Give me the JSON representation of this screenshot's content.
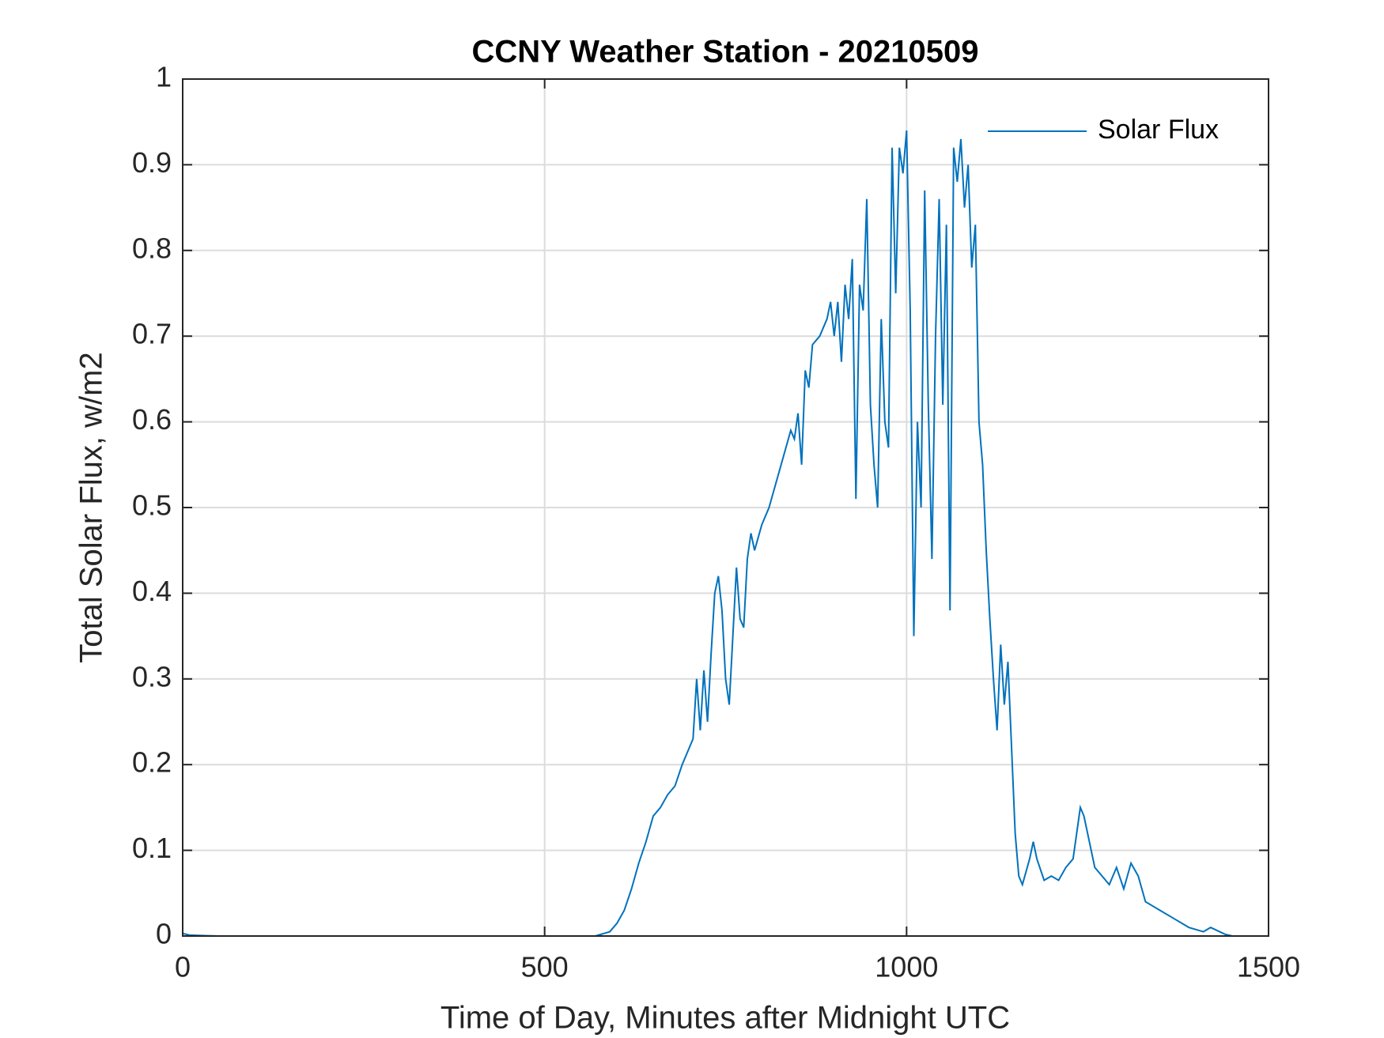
{
  "chart_data": {
    "type": "line",
    "title": "CCNY Weather Station - 20210509",
    "xlabel": "Time of Day, Minutes after Midnight UTC",
    "ylabel": "Total Solar Flux, w/m2",
    "xlim": [
      0,
      1500
    ],
    "xticks": [
      0,
      500,
      1000,
      1500
    ],
    "ylim": [
      0,
      1
    ],
    "yticks": [
      0,
      0.1,
      0.2,
      0.3,
      0.4,
      0.5,
      0.6,
      0.7,
      0.8,
      0.9,
      1
    ],
    "grid": true,
    "legend": "northeast",
    "x": [
      0,
      10,
      50,
      200,
      400,
      500,
      570,
      590,
      600,
      610,
      620,
      630,
      640,
      650,
      660,
      670,
      680,
      690,
      700,
      705,
      710,
      715,
      720,
      725,
      730,
      735,
      740,
      745,
      750,
      755,
      760,
      765,
      770,
      775,
      780,
      785,
      790,
      800,
      810,
      820,
      830,
      840,
      845,
      850,
      855,
      860,
      865,
      870,
      880,
      890,
      895,
      900,
      905,
      910,
      915,
      920,
      925,
      930,
      935,
      940,
      945,
      950,
      955,
      960,
      965,
      970,
      975,
      980,
      985,
      990,
      995,
      1000,
      1005,
      1010,
      1015,
      1020,
      1025,
      1030,
      1035,
      1040,
      1045,
      1050,
      1055,
      1060,
      1065,
      1070,
      1075,
      1080,
      1085,
      1090,
      1095,
      1100,
      1105,
      1110,
      1115,
      1120,
      1125,
      1130,
      1135,
      1140,
      1145,
      1150,
      1155,
      1160,
      1170,
      1175,
      1180,
      1190,
      1200,
      1210,
      1220,
      1230,
      1240,
      1245,
      1250,
      1260,
      1270,
      1280,
      1290,
      1300,
      1310,
      1320,
      1330,
      1340,
      1350,
      1370,
      1390,
      1410,
      1420,
      1440,
      1450
    ],
    "series": [
      {
        "name": "Solar Flux",
        "color": "#0072bd",
        "values": [
          0.003,
          0.001,
          0,
          0,
          0,
          0,
          0,
          0.005,
          0.015,
          0.03,
          0.055,
          0.085,
          0.11,
          0.14,
          0.15,
          0.165,
          0.175,
          0.2,
          0.22,
          0.23,
          0.3,
          0.24,
          0.31,
          0.25,
          0.33,
          0.4,
          0.42,
          0.38,
          0.3,
          0.27,
          0.35,
          0.43,
          0.37,
          0.36,
          0.44,
          0.47,
          0.45,
          0.48,
          0.5,
          0.53,
          0.56,
          0.59,
          0.58,
          0.61,
          0.55,
          0.66,
          0.64,
          0.69,
          0.7,
          0.72,
          0.74,
          0.7,
          0.74,
          0.67,
          0.76,
          0.72,
          0.79,
          0.51,
          0.76,
          0.73,
          0.86,
          0.62,
          0.55,
          0.5,
          0.72,
          0.6,
          0.57,
          0.92,
          0.75,
          0.92,
          0.89,
          0.94,
          0.73,
          0.35,
          0.6,
          0.5,
          0.87,
          0.62,
          0.44,
          0.7,
          0.86,
          0.62,
          0.83,
          0.38,
          0.92,
          0.88,
          0.93,
          0.85,
          0.9,
          0.78,
          0.83,
          0.6,
          0.55,
          0.45,
          0.37,
          0.3,
          0.24,
          0.34,
          0.27,
          0.32,
          0.22,
          0.12,
          0.07,
          0.06,
          0.09,
          0.11,
          0.09,
          0.065,
          0.07,
          0.065,
          0.08,
          0.09,
          0.15,
          0.14,
          0.12,
          0.08,
          0.07,
          0.06,
          0.08,
          0.055,
          0.085,
          0.07,
          0.04,
          0.035,
          0.03,
          0.02,
          0.01,
          0.005,
          0.01,
          0.002,
          0
        ]
      }
    ]
  }
}
